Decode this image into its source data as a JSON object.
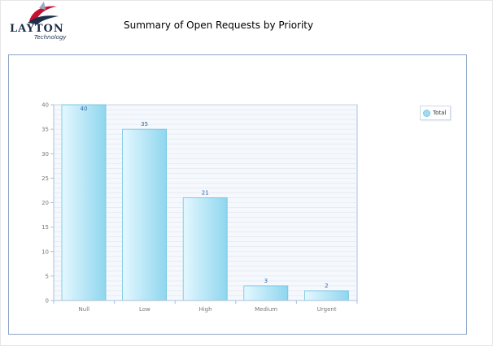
{
  "header": {
    "logo_word": "LAYTON",
    "logo_sub": "Technology",
    "title": "Summary of Open Requests by Priority"
  },
  "colors": {
    "bar_light": "#e4f8ff",
    "bar_dark": "#8fd6ee",
    "bar_edge": "#6cc1e0",
    "plot_bg": "#f5f8fc",
    "gridline": "#dfe6f0",
    "axis": "#a8c0dc",
    "value_label": "#3366aa",
    "tick_label": "#777777"
  },
  "chart_data": {
    "type": "bar",
    "categories": [
      "Null",
      "Low",
      "High",
      "Medium",
      "Urgent"
    ],
    "series": [
      {
        "name": "Total",
        "values": [
          40,
          35,
          21,
          3,
          2
        ]
      }
    ],
    "title": "",
    "xlabel": "",
    "ylabel": "",
    "ylim": [
      0,
      40
    ],
    "yticks": [
      0,
      5,
      10,
      15,
      20,
      25,
      30,
      35,
      40
    ],
    "grid": true,
    "legend_position": "top-right"
  }
}
